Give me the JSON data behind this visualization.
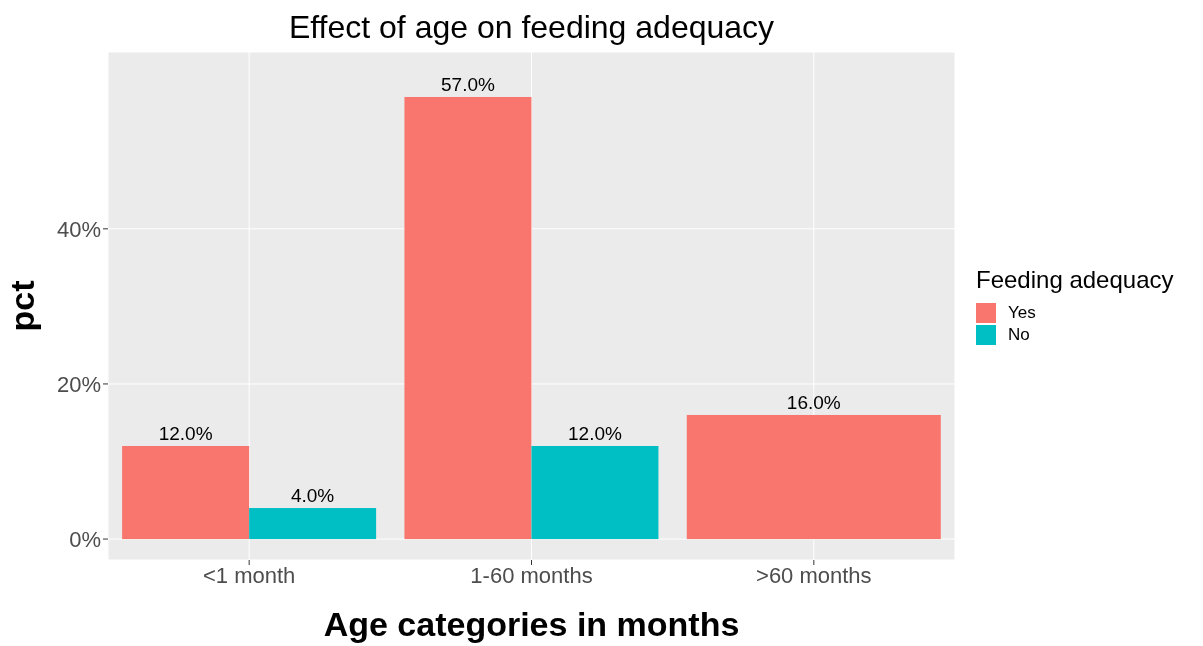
{
  "chart_data": {
    "type": "bar",
    "title": "Effect of age on feeding adequacy",
    "xlabel": "Age categories in months",
    "ylabel": "pct",
    "legend_title": "Feeding adequacy",
    "categories": [
      "<1 month",
      "1-60 months",
      ">60 months"
    ],
    "series": [
      {
        "name": "Yes",
        "color": "#f8766d",
        "values": [
          12,
          57,
          16
        ],
        "value_labels": [
          "12.0%",
          "57.0%",
          "16.0%"
        ]
      },
      {
        "name": "No",
        "color": "#00bfc4",
        "values": [
          4,
          12,
          null
        ],
        "value_labels": [
          "4.0%",
          "12.0%",
          null
        ]
      }
    ],
    "ylim": [
      -2.7,
      62.8
    ],
    "yticks": [
      {
        "value": 0,
        "label": "0%"
      },
      {
        "value": 20,
        "label": "20%"
      },
      {
        "value": 40,
        "label": "40%"
      }
    ],
    "grid": true,
    "legend": "right"
  }
}
